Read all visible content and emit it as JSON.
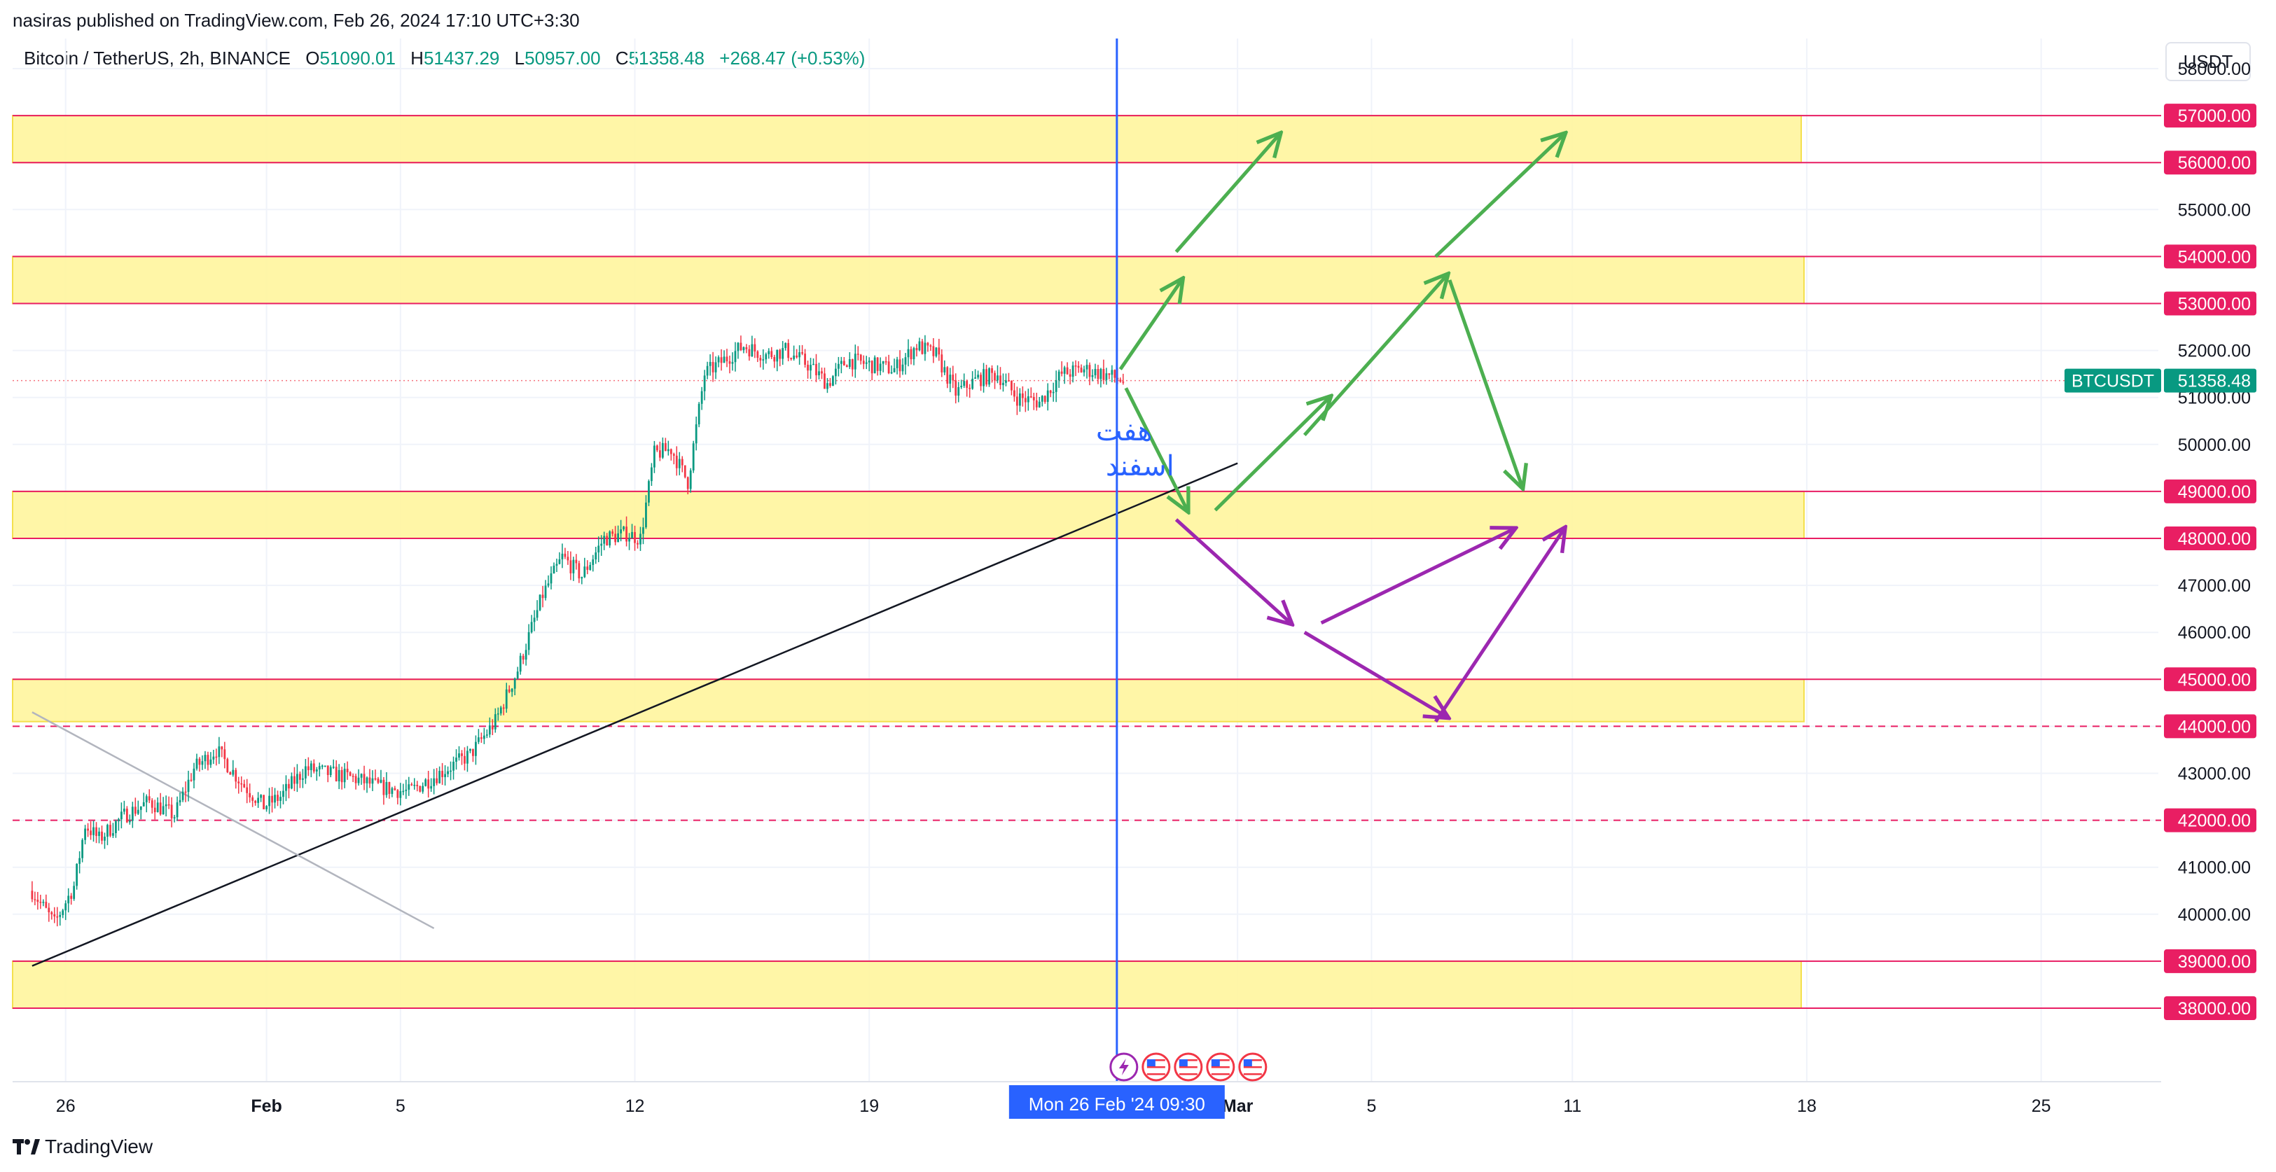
{
  "header": {
    "published": "nasiras published on TradingView.com, Feb 26, 2024 17:10 UTC+3:30",
    "symbol": "Bitcoin / TetherUS, 2h, BINANCE",
    "open_label": "O",
    "open": "51090.01",
    "high_label": "H",
    "high": "51437.29",
    "low_label": "L",
    "low": "50957.00",
    "close_label": "C",
    "close": "51358.48",
    "change": "+268.47 (+0.53%)"
  },
  "currency": "USDT",
  "brand": {
    "logo": "tradingview-logo",
    "name": "TradingView"
  },
  "colors": {
    "up": "#089981",
    "down": "#f23645",
    "zone_fill": "#fff59d",
    "zone_line": "#e91e63",
    "level_label_bg": "#e91e63",
    "vline": "#2962ff",
    "arrow_green": "#4caf50",
    "arrow_purple": "#9c27b0",
    "price_label_bg": "#089981"
  },
  "chart_data": {
    "type": "candlestick",
    "interval": "2h",
    "ylim": [
      37800,
      58800
    ],
    "y_ticks": [
      38000,
      39000,
      40000,
      41000,
      42000,
      43000,
      44000,
      45000,
      46000,
      47000,
      48000,
      49000,
      50000,
      51000,
      52000,
      53000,
      54000,
      55000,
      56000,
      57000,
      58000
    ],
    "x_ticks": [
      {
        "label": "26",
        "x": "2024-01-26"
      },
      {
        "label": "Feb",
        "x": "2024-02-01"
      },
      {
        "label": "5",
        "x": "2024-02-05"
      },
      {
        "label": "12",
        "x": "2024-02-12"
      },
      {
        "label": "19",
        "x": "2024-02-19"
      },
      {
        "label": "Mar",
        "x": "2024-03-01"
      },
      {
        "label": "5",
        "x": "2024-03-05"
      },
      {
        "label": "11",
        "x": "2024-03-11"
      },
      {
        "label": "18",
        "x": "2024-03-18"
      },
      {
        "label": "25",
        "x": "2024-03-25"
      }
    ],
    "price_path": [
      [
        "2024-01-25 00:00",
        40500
      ],
      [
        "2024-01-25 16:00",
        39800
      ],
      [
        "2024-01-26 06:00",
        40600
      ],
      [
        "2024-01-26 14:00",
        41900
      ],
      [
        "2024-01-27 00:00",
        41600
      ],
      [
        "2024-01-27 18:00",
        42100
      ],
      [
        "2024-01-28 12:00",
        42400
      ],
      [
        "2024-01-29 06:00",
        42100
      ],
      [
        "2024-01-29 20:00",
        43100
      ],
      [
        "2024-01-30 12:00",
        43500
      ],
      [
        "2024-01-31 06:00",
        42800
      ],
      [
        "2024-01-31 22:00",
        42300
      ],
      [
        "2024-02-01 10:00",
        42500
      ],
      [
        "2024-02-02 04:00",
        43100
      ],
      [
        "2024-02-02 20:00",
        43000
      ],
      [
        "2024-02-03 14:00",
        42900
      ],
      [
        "2024-02-04 10:00",
        42700
      ],
      [
        "2024-02-05 06:00",
        42600
      ],
      [
        "2024-02-06 04:00",
        43000
      ],
      [
        "2024-02-07 02:00",
        43400
      ],
      [
        "2024-02-07 20:00",
        44100
      ],
      [
        "2024-02-08 12:00",
        45200
      ],
      [
        "2024-02-09 06:00",
        46800
      ],
      [
        "2024-02-09 20:00",
        47600
      ],
      [
        "2024-02-10 10:00",
        47200
      ],
      [
        "2024-02-11 02:00",
        48000
      ],
      [
        "2024-02-11 18:00",
        48100
      ],
      [
        "2024-02-12 04:00",
        48000
      ],
      [
        "2024-02-12 14:00",
        49800
      ],
      [
        "2024-02-13 02:00",
        49900
      ],
      [
        "2024-02-13 14:00",
        49200
      ],
      [
        "2024-02-14 02:00",
        51500
      ],
      [
        "2024-02-14 16:00",
        51800
      ],
      [
        "2024-02-15 06:00",
        52100
      ],
      [
        "2024-02-15 22:00",
        51900
      ],
      [
        "2024-02-16 12:00",
        52000
      ],
      [
        "2024-02-17 04:00",
        51700
      ],
      [
        "2024-02-17 18:00",
        51300
      ],
      [
        "2024-02-18 08:00",
        51800
      ],
      [
        "2024-02-19 00:00",
        51700
      ],
      [
        "2024-02-19 18:00",
        51600
      ],
      [
        "2024-02-20 10:00",
        52100
      ],
      [
        "2024-02-21 00:00",
        51900
      ],
      [
        "2024-02-21 14:00",
        51100
      ],
      [
        "2024-02-22 06:00",
        51400
      ],
      [
        "2024-02-22 20:00",
        51500
      ],
      [
        "2024-02-23 10:00",
        51000
      ],
      [
        "2024-02-24 02:00",
        50900
      ],
      [
        "2024-02-24 18:00",
        51500
      ],
      [
        "2024-02-25 10:00",
        51600
      ],
      [
        "2024-02-26 00:00",
        51500
      ],
      [
        "2024-02-26 14:00",
        51358
      ]
    ],
    "zones": [
      {
        "top": 57000,
        "bottom": 56000,
        "x_end": "2024-03-17 20:00"
      },
      {
        "top": 54000,
        "bottom": 53000,
        "x_end": "2024-03-17 22:00"
      },
      {
        "top": 49000,
        "bottom": 48000,
        "x_end": "2024-03-17 22:00"
      },
      {
        "top": 45000,
        "bottom": 44100,
        "x_end": "2024-03-17 22:00"
      },
      {
        "top": 39000,
        "bottom": 38000,
        "x_end": "2024-03-17 20:00"
      }
    ],
    "levels": [
      {
        "price": 57000,
        "label": "57000.00",
        "style": "solid"
      },
      {
        "price": 56000,
        "label": "56000.00",
        "style": "solid"
      },
      {
        "price": 54000,
        "label": "54000.00",
        "style": "solid"
      },
      {
        "price": 53000,
        "label": "53000.00",
        "style": "solid"
      },
      {
        "price": 49000,
        "label": "49000.00",
        "style": "solid"
      },
      {
        "price": 48000,
        "label": "48000.00",
        "style": "solid"
      },
      {
        "price": 45000,
        "label": "45000.00",
        "style": "solid"
      },
      {
        "price": 44000,
        "label": "44000.00",
        "style": "dashed"
      },
      {
        "price": 42000,
        "label": "42000.00",
        "style": "dashed"
      },
      {
        "price": 39000,
        "label": "39000.00",
        "style": "solid"
      },
      {
        "price": 38000,
        "label": "38000.00",
        "style": "solid"
      }
    ],
    "trendlines": [
      {
        "color": "#131722",
        "from": [
          "2024-01-25 00:00",
          38900
        ],
        "to": [
          "2024-03-01 00:00",
          49600
        ]
      },
      {
        "color": "#b2b5be",
        "from": [
          "2024-01-25 00:00",
          44300
        ],
        "to": [
          "2024-02-06 00:00",
          39700
        ]
      }
    ],
    "vertical_marker": {
      "x": "2024-02-26 09:30",
      "label": "Mon 26 Feb '24   09:30"
    },
    "annotation": {
      "text_line1": "هفت",
      "text_line2": "اسفند",
      "x": "2024-02-25 00:00",
      "y": 50000
    },
    "arrows_green": [
      [
        [
          "2024-02-26 12:00",
          51600
        ],
        [
          "2024-02-28 08:00",
          53500
        ]
      ],
      [
        [
          "2024-02-28 04:00",
          54100
        ],
        [
          "2024-03-02 06:00",
          56600
        ]
      ],
      [
        [
          "2024-02-26 16:00",
          51200
        ],
        [
          "2024-02-28 12:00",
          48600
        ]
      ],
      [
        [
          "2024-02-29 08:00",
          48600
        ],
        [
          "2024-03-03 18:00",
          51000
        ]
      ],
      [
        [
          "2024-03-03 00:00",
          50200
        ],
        [
          "2024-03-07 06:00",
          53600
        ]
      ],
      [
        [
          "2024-03-07 08:00",
          53500
        ],
        [
          "2024-03-09 12:00",
          49100
        ]
      ],
      [
        [
          "2024-03-06 22:00",
          54000
        ],
        [
          "2024-03-10 18:00",
          56600
        ]
      ]
    ],
    "arrows_purple": [
      [
        [
          "2024-02-28 04:00",
          48400
        ],
        [
          "2024-03-02 14:00",
          46200
        ]
      ],
      [
        [
          "2024-03-03 00:00",
          46000
        ],
        [
          "2024-03-07 06:00",
          44200
        ]
      ],
      [
        [
          "2024-03-03 12:00",
          46200
        ],
        [
          "2024-03-09 06:00",
          48200
        ]
      ],
      [
        [
          "2024-03-06 22:00",
          44100
        ],
        [
          "2024-03-10 18:00",
          48200
        ]
      ]
    ],
    "last_price": {
      "symbol": "BTCUSDT",
      "value": "51358.48",
      "price": 51358.48
    },
    "event_icons": [
      "flash-icon",
      "us-flag-icon",
      "us-flag-icon",
      "us-flag-icon",
      "us-flag-icon"
    ]
  }
}
